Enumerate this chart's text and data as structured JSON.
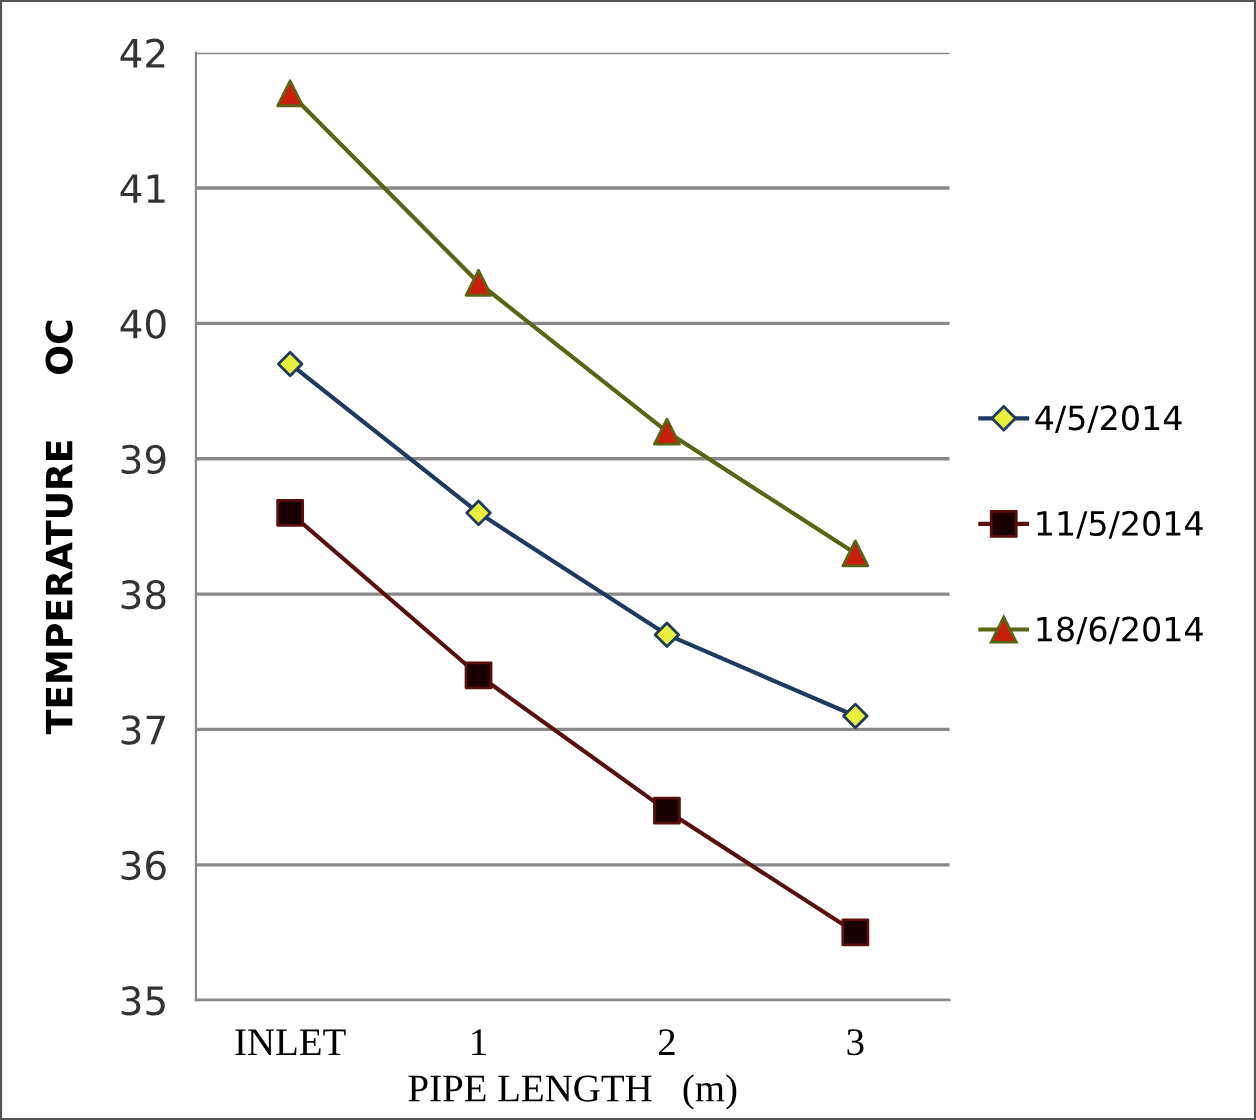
{
  "chart_data": {
    "type": "line",
    "xlabel": "PIPE LENGTH   (m)",
    "ylabel": "TEMPERATURE     OC",
    "categories": [
      "INLET",
      "1",
      "2",
      "3"
    ],
    "series": [
      {
        "name": "4/5/2014",
        "color": "#1f3a5f",
        "marker": "diamond",
        "colors": [
          "#e8f03c",
          "#e8f03c",
          "#e8f03c",
          "#e8f03c"
        ],
        "values": [
          39.7,
          38.6,
          37.7,
          37.1
        ]
      },
      {
        "name": "11/5/2014",
        "color": "#5a0f0f",
        "marker": "square",
        "colors": [
          "#1a0000",
          "#1a0000",
          "#1a0000",
          "#1a0000"
        ],
        "values": [
          38.6,
          37.4,
          36.4,
          35.5
        ]
      },
      {
        "name": "18/6/2014",
        "color": "#5a6414",
        "marker": "triangle",
        "colors": [
          "#c81e0a",
          "#c81e0a",
          "#c81e0a",
          "#c81e0a"
        ],
        "values": [
          41.7,
          40.3,
          39.2,
          38.3
        ]
      }
    ],
    "ylim": [
      35,
      42
    ],
    "yticks": [
      35,
      36,
      37,
      38,
      39,
      40,
      41,
      42
    ],
    "grid": "y",
    "legend": "right",
    "line_style": "solid"
  }
}
